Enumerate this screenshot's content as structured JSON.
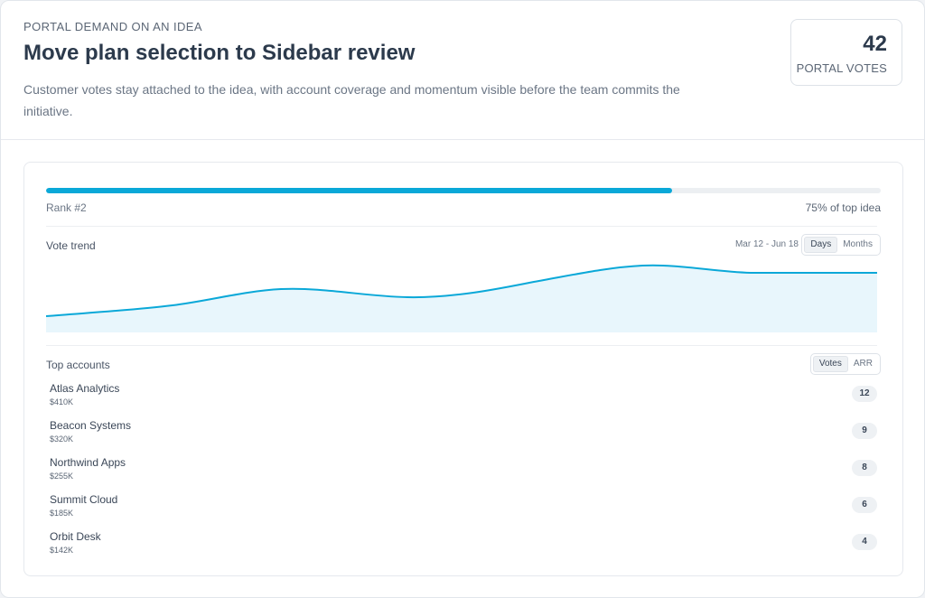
{
  "header": {
    "eyebrow": "PORTAL DEMAND ON AN IDEA",
    "title": "Move plan selection to Sidebar review",
    "description": "Customer votes stay attached to the idea, with account coverage and momentum visible before the team commits the initiative."
  },
  "portal_votes": {
    "count": "42",
    "label": "PORTAL VOTES"
  },
  "ranking": {
    "rank_label": "Rank #2",
    "percent_label": "75% of top idea",
    "progress": 0.75
  },
  "vote_trend": {
    "title": "Vote trend",
    "date_range": "Mar 12 - Jun 18",
    "toggle": {
      "options": [
        "Days",
        "Months"
      ],
      "selected": "Days"
    }
  },
  "top_accounts": {
    "title": "Top accounts",
    "toggle": {
      "options": [
        "Votes",
        "ARR"
      ],
      "selected": "Votes"
    },
    "items": [
      {
        "name": "Atlas Analytics",
        "arr": "$410K",
        "votes": "12"
      },
      {
        "name": "Beacon Systems",
        "arr": "$320K",
        "votes": "9"
      },
      {
        "name": "Northwind Apps",
        "arr": "$255K",
        "votes": "8"
      },
      {
        "name": "Summit Cloud",
        "arr": "$185K",
        "votes": "6"
      },
      {
        "name": "Orbit Desk",
        "arr": "$142K",
        "votes": "4"
      }
    ]
  },
  "colors": {
    "accent": "#0aa8d8",
    "area_fill": "#e8f6fc"
  }
}
